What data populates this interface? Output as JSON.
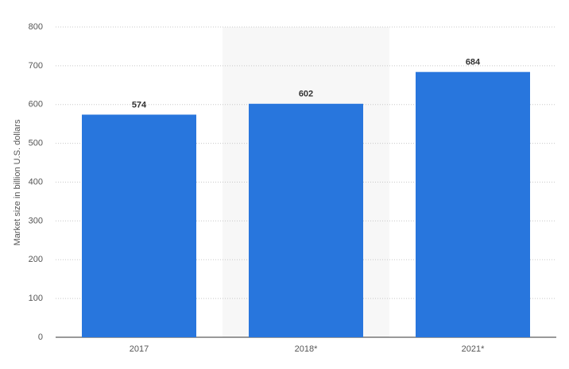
{
  "chart_data": {
    "type": "bar",
    "y_label": "Market size in billion U.S. dollars",
    "categories": [
      "2017",
      "2018*",
      "2021*"
    ],
    "values": [
      574,
      602,
      684
    ],
    "color": "#2876dd",
    "ylim": [
      0,
      800
    ],
    "yticks": [
      0,
      100,
      200,
      300,
      400,
      500,
      600,
      700,
      800
    ],
    "grid": true
  }
}
